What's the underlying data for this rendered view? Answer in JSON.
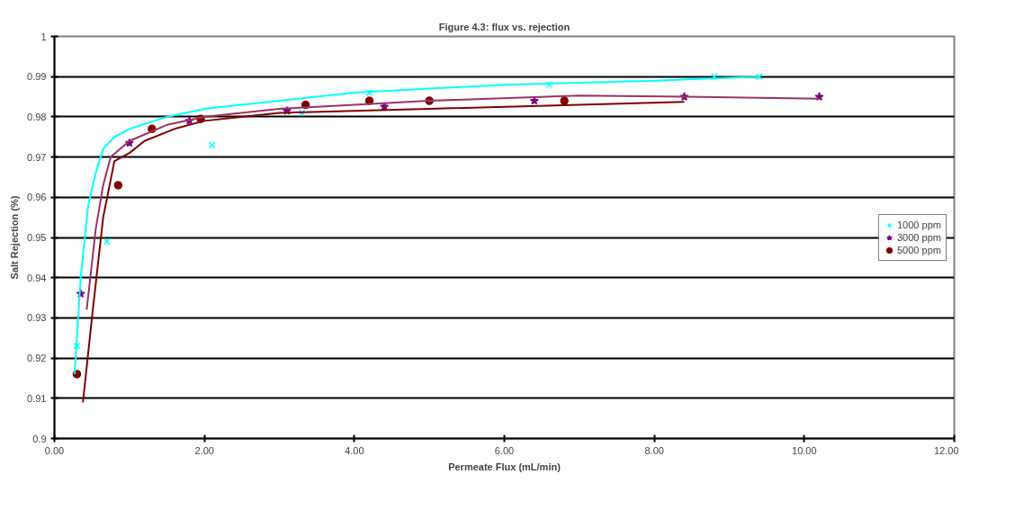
{
  "chart_data": {
    "type": "scatter",
    "title": "Figure 4.3: flux vs. rejection",
    "xlabel": "Permeate Flux (mL/min)",
    "ylabel": "Salt Rejection (%)",
    "xlim": [
      0,
      12
    ],
    "ylim": [
      0.9,
      1
    ],
    "xticks": [
      {
        "value": 0,
        "label": "0.00"
      },
      {
        "value": 2,
        "label": "2.00"
      },
      {
        "value": 4,
        "label": "4.00"
      },
      {
        "value": 6,
        "label": "6.00"
      },
      {
        "value": 8,
        "label": "8.00"
      },
      {
        "value": 10,
        "label": "10.00"
      },
      {
        "value": 12,
        "label": "12.00"
      }
    ],
    "yticks": [
      0.9,
      0.91,
      0.92,
      0.93,
      0.94,
      0.95,
      0.96,
      0.97,
      0.98,
      0.99,
      1
    ],
    "grid": "y",
    "legend": "right",
    "series": [
      {
        "name": "1000 ppm",
        "marker": "cross",
        "color": "#00ffff",
        "x": [
          0.3,
          0.7,
          2.1,
          3.3,
          4.2,
          6.6,
          8.8,
          9.4
        ],
        "values": [
          0.923,
          0.949,
          0.973,
          0.981,
          0.986,
          0.988,
          0.99,
          0.99
        ]
      },
      {
        "name": "3000 ppm",
        "marker": "star",
        "color": "#800080",
        "x": [
          0.35,
          1.0,
          1.8,
          3.1,
          4.4,
          6.4,
          8.4,
          10.2
        ],
        "values": [
          0.936,
          0.9735,
          0.979,
          0.9815,
          0.9825,
          0.984,
          0.985,
          0.985
        ]
      },
      {
        "name": "5000 ppm",
        "marker": "circle",
        "color": "#800000",
        "x": [
          0.3,
          0.85,
          1.3,
          1.95,
          3.35,
          4.2,
          5.0,
          6.8
        ],
        "values": [
          0.916,
          0.963,
          0.977,
          0.9795,
          0.983,
          0.984,
          0.984,
          0.984
        ]
      },
      {
        "type": "line",
        "color": "#00ffff",
        "x": [
          0.27,
          0.35,
          0.45,
          0.55,
          0.65,
          0.8,
          1.0,
          1.5,
          2,
          3,
          4,
          6,
          8,
          9.4
        ],
        "values": [
          0.916,
          0.94,
          0.958,
          0.966,
          0.972,
          0.975,
          0.977,
          0.98,
          0.982,
          0.984,
          0.986,
          0.988,
          0.989,
          0.99
        ]
      },
      {
        "type": "line",
        "color": "#993366",
        "x": [
          0.43,
          0.55,
          0.65,
          0.75,
          1.0,
          1.5,
          2,
          3,
          5,
          7,
          8.4,
          10.2
        ],
        "values": [
          0.932,
          0.952,
          0.963,
          0.97,
          0.974,
          0.978,
          0.98,
          0.982,
          0.984,
          0.9853,
          0.985,
          0.9845
        ]
      },
      {
        "type": "line",
        "color": "#800000",
        "x": [
          0.38,
          0.5,
          0.65,
          0.8,
          1.0,
          1.2,
          1.6,
          2,
          3,
          5,
          7,
          8.4
        ],
        "values": [
          0.909,
          0.93,
          0.955,
          0.969,
          0.971,
          0.974,
          0.977,
          0.979,
          0.981,
          0.982,
          0.983,
          0.9837
        ]
      }
    ]
  }
}
